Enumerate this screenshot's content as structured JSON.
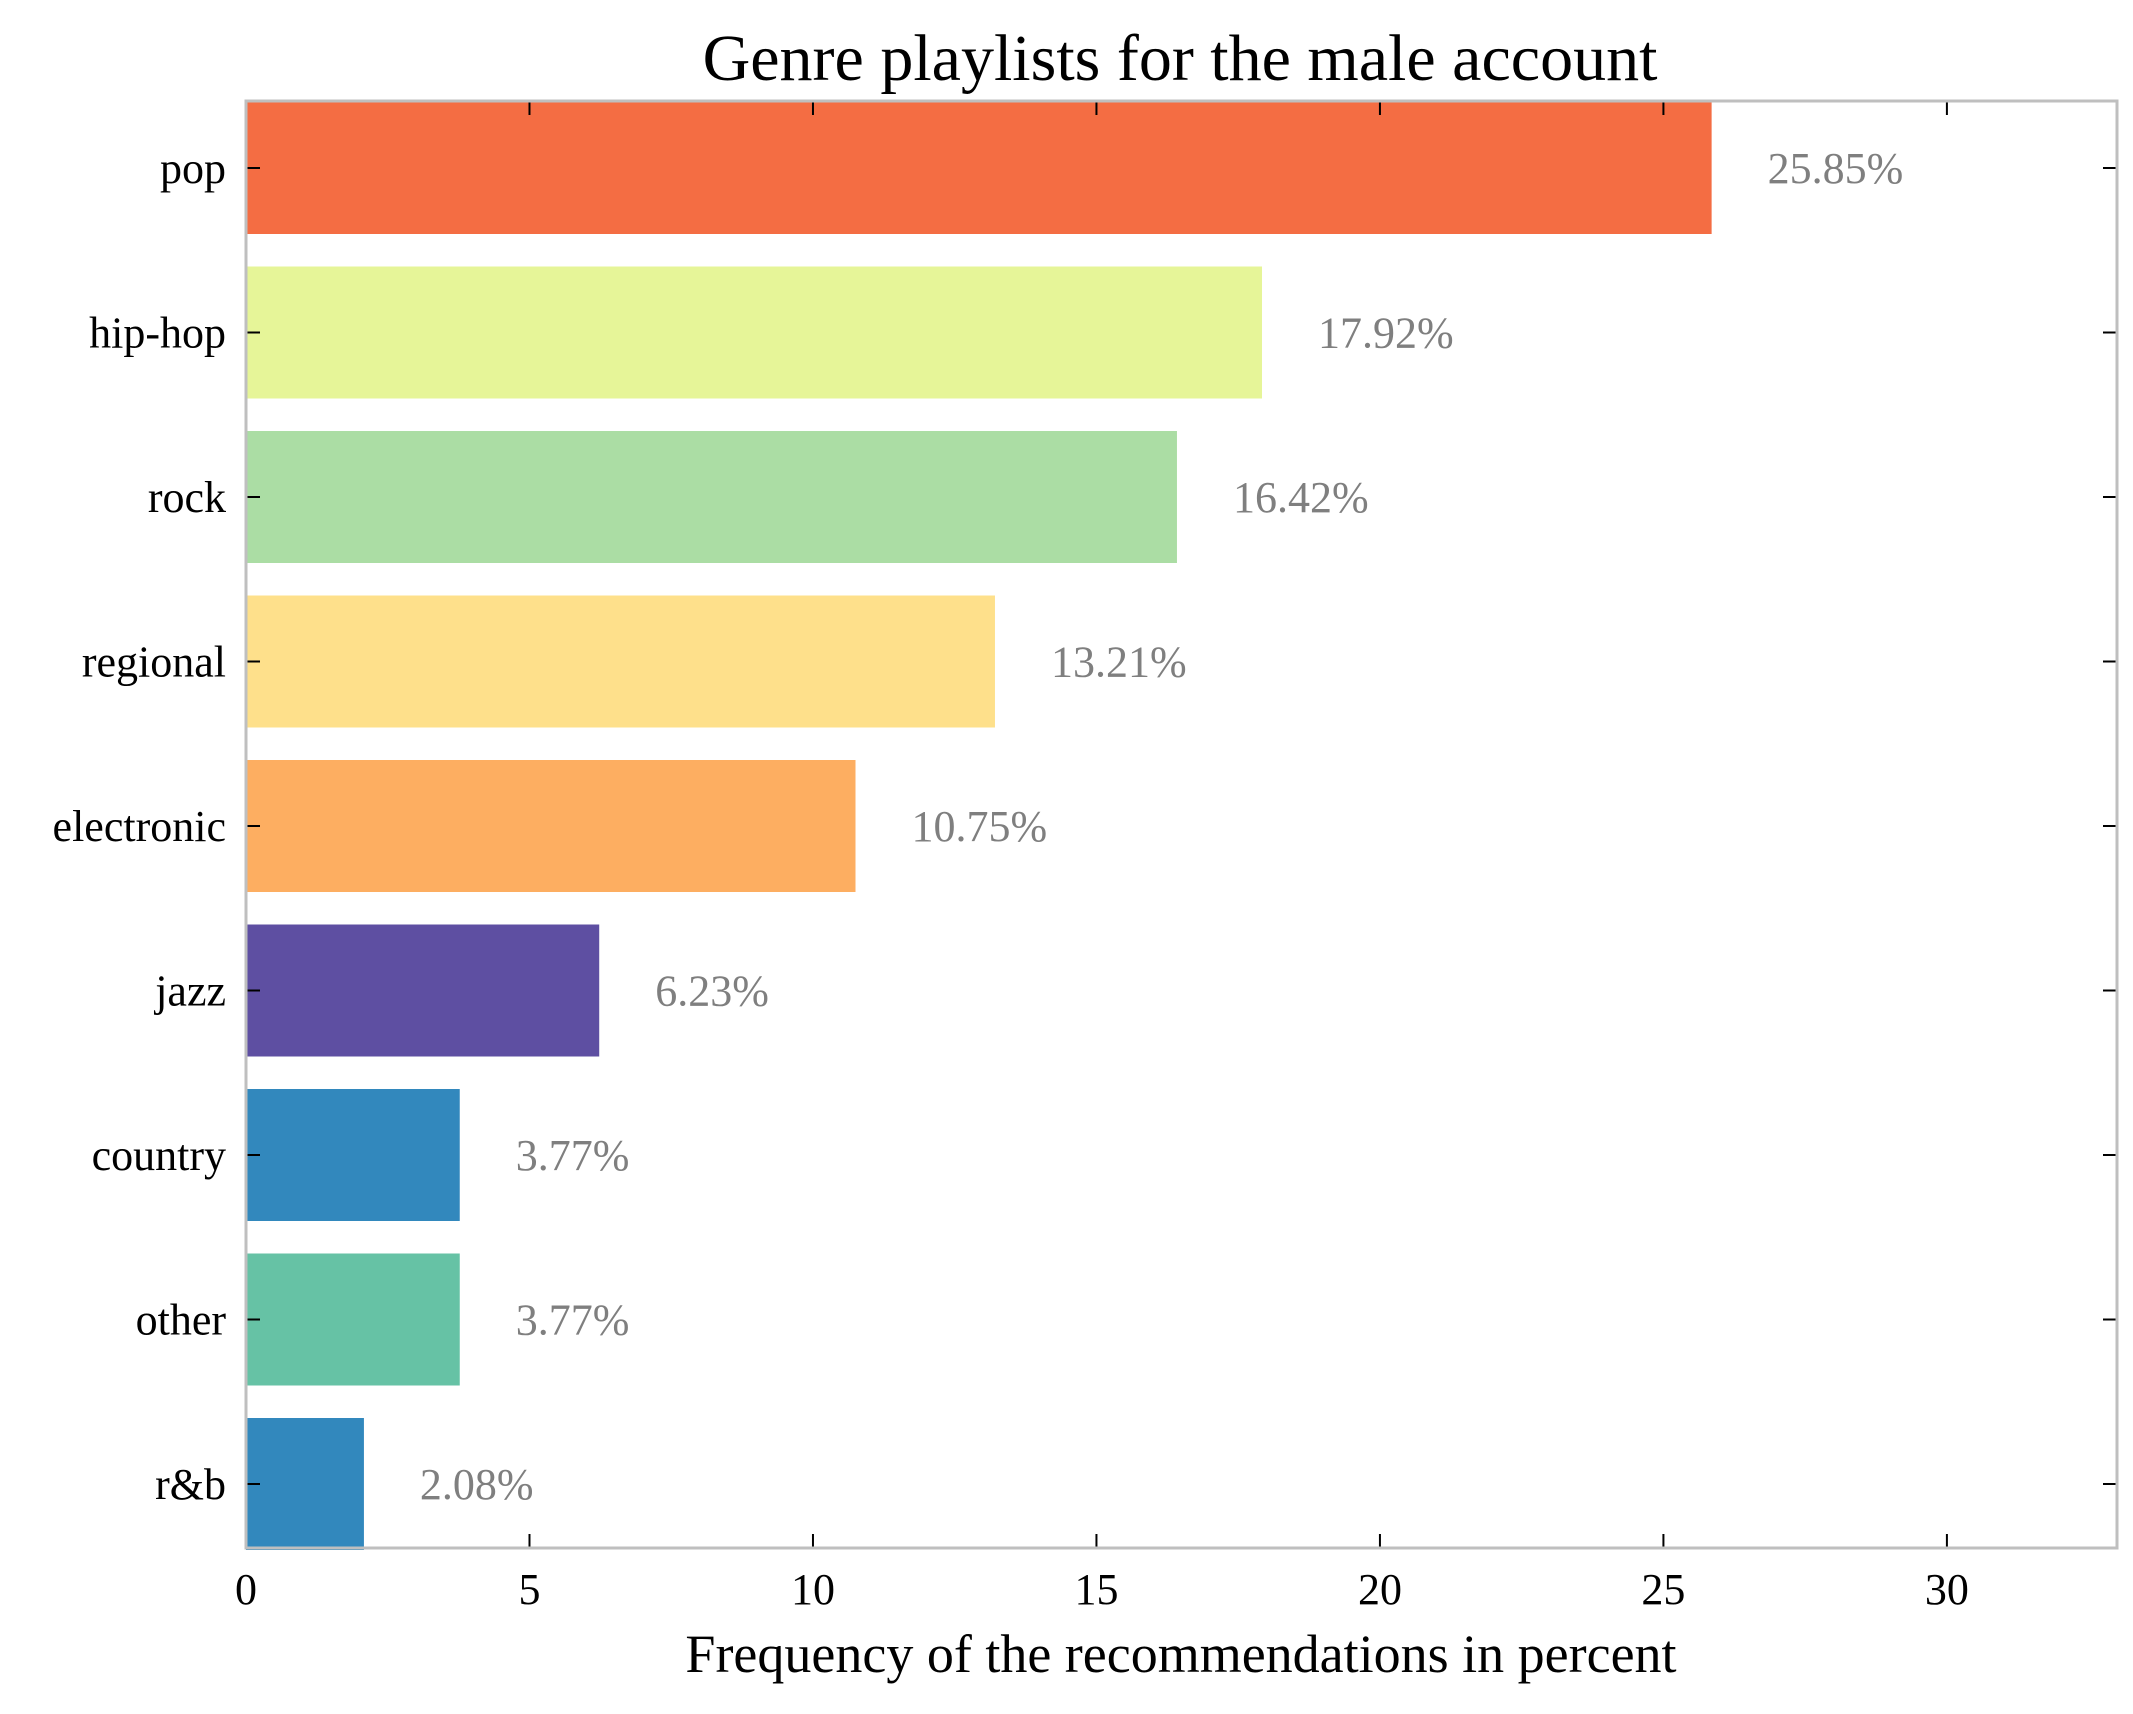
{
  "chart_data": {
    "type": "bar",
    "orientation": "horizontal",
    "title": "Genre playlists for the male account",
    "xlabel": "Frequency of the recommendations in percent",
    "ylabel": "",
    "categories": [
      "pop",
      "hip-hop",
      "rock",
      "regional",
      "electronic",
      "jazz",
      "country",
      "other",
      "r&b"
    ],
    "values": [
      25.85,
      17.92,
      16.42,
      13.21,
      10.75,
      6.23,
      3.77,
      3.77,
      2.08
    ],
    "data_labels": [
      "25.85%",
      "17.92%",
      "16.42%",
      "13.21%",
      "10.75%",
      "6.23%",
      "3.77%",
      "3.77%",
      "2.08%"
    ],
    "colors": [
      "#f46d43",
      "#e6f598",
      "#abdda4",
      "#fee08b",
      "#fdae61",
      "#5e4fa2",
      "#3288bd",
      "#66c2a5",
      "#3288bd"
    ],
    "xlim": [
      0,
      33
    ],
    "xticks": [
      0,
      5,
      10,
      15,
      20,
      25,
      30
    ],
    "grid": false,
    "legend": "none"
  }
}
